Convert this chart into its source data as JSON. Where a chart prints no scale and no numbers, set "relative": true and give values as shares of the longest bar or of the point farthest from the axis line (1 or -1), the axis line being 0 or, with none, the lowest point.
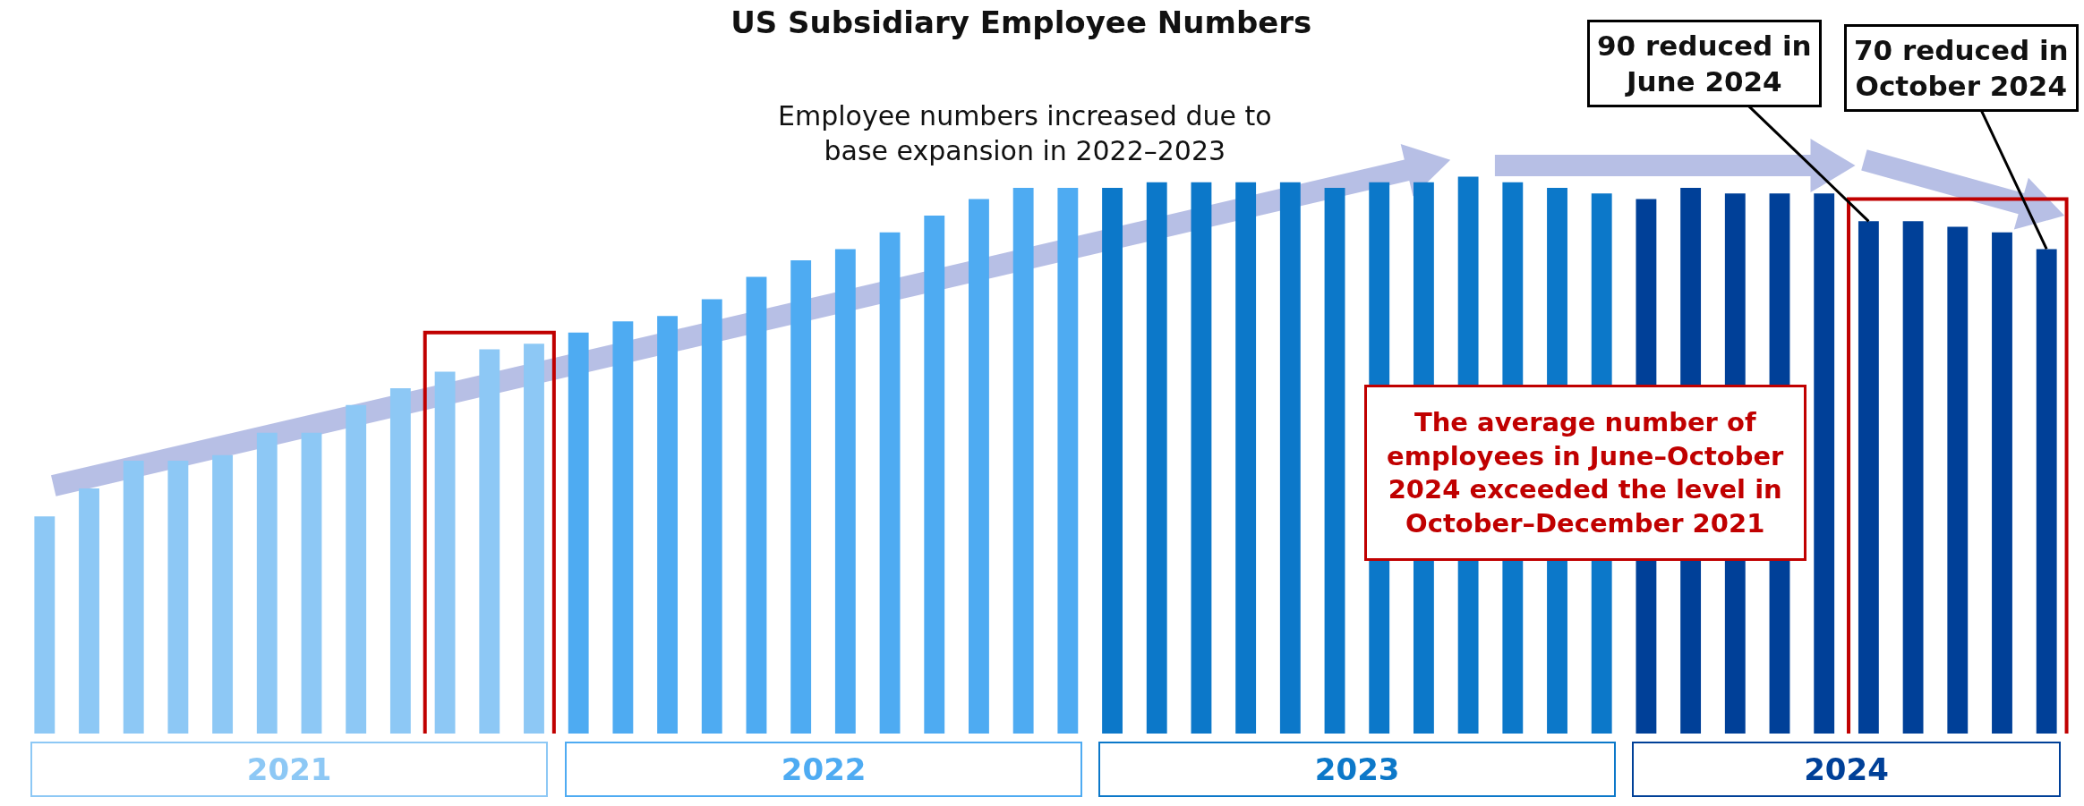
{
  "chart_data": {
    "type": "bar",
    "title": "US Subsidiary Employee Numbers",
    "relative": true,
    "legend": false,
    "grid": false,
    "categories": [
      null,
      null,
      null,
      null,
      null,
      null,
      null,
      null,
      null,
      null,
      null,
      null,
      null,
      null,
      null,
      null,
      null,
      null,
      null,
      null,
      null,
      null,
      null,
      null,
      null,
      null,
      null,
      null,
      null,
      null,
      null,
      null,
      null,
      null,
      null,
      null,
      null,
      null,
      null,
      null,
      null,
      null,
      null,
      null,
      null,
      null
    ],
    "values": [
      0.39,
      0.44,
      0.49,
      0.49,
      0.5,
      0.54,
      0.54,
      0.59,
      0.62,
      0.65,
      0.69,
      0.7,
      0.72,
      0.74,
      0.75,
      0.78,
      0.82,
      0.85,
      0.87,
      0.9,
      0.93,
      0.96,
      0.98,
      0.98,
      0.98,
      0.99,
      0.99,
      0.99,
      0.99,
      0.98,
      0.99,
      0.99,
      1,
      0.99,
      0.98,
      0.97,
      0.96,
      0.98,
      0.97,
      0.97,
      0.97,
      0.92,
      0.92,
      0.91,
      0.9,
      0.87
    ],
    "colors": [
      "#8dc8f5",
      "#8dc8f5",
      "#8dc8f5",
      "#8dc8f5",
      "#8dc8f5",
      "#8dc8f5",
      "#8dc8f5",
      "#8dc8f5",
      "#8dc8f5",
      "#8dc8f5",
      "#8dc8f5",
      "#8dc8f5",
      "#4eabf2",
      "#4eabf2",
      "#4eabf2",
      "#4eabf2",
      "#4eabf2",
      "#4eabf2",
      "#4eabf2",
      "#4eabf2",
      "#4eabf2",
      "#4eabf2",
      "#4eabf2",
      "#4eabf2",
      "#0c78c9",
      "#0c78c9",
      "#0c78c9",
      "#0c78c9",
      "#0c78c9",
      "#0c78c9",
      "#0c78c9",
      "#0c78c9",
      "#0c78c9",
      "#0c78c9",
      "#0c78c9",
      "#0c78c9",
      "#004098",
      "#004098",
      "#004098",
      "#004098",
      "#004098",
      "#004098",
      "#004098",
      "#004098",
      "#004098",
      "#004098"
    ],
    "annotations": [
      "Employee numbers increased due to\nbase expansion in 2022–2023",
      "90 reduced in\nJune 2024",
      "70 reduced in\nOctober 2024",
      "The average number of\nemployees in June–October\n2024 exceeded the level in\nOctober–December 2021",
      "2021",
      "2022",
      "2023",
      "2024"
    ]
  }
}
